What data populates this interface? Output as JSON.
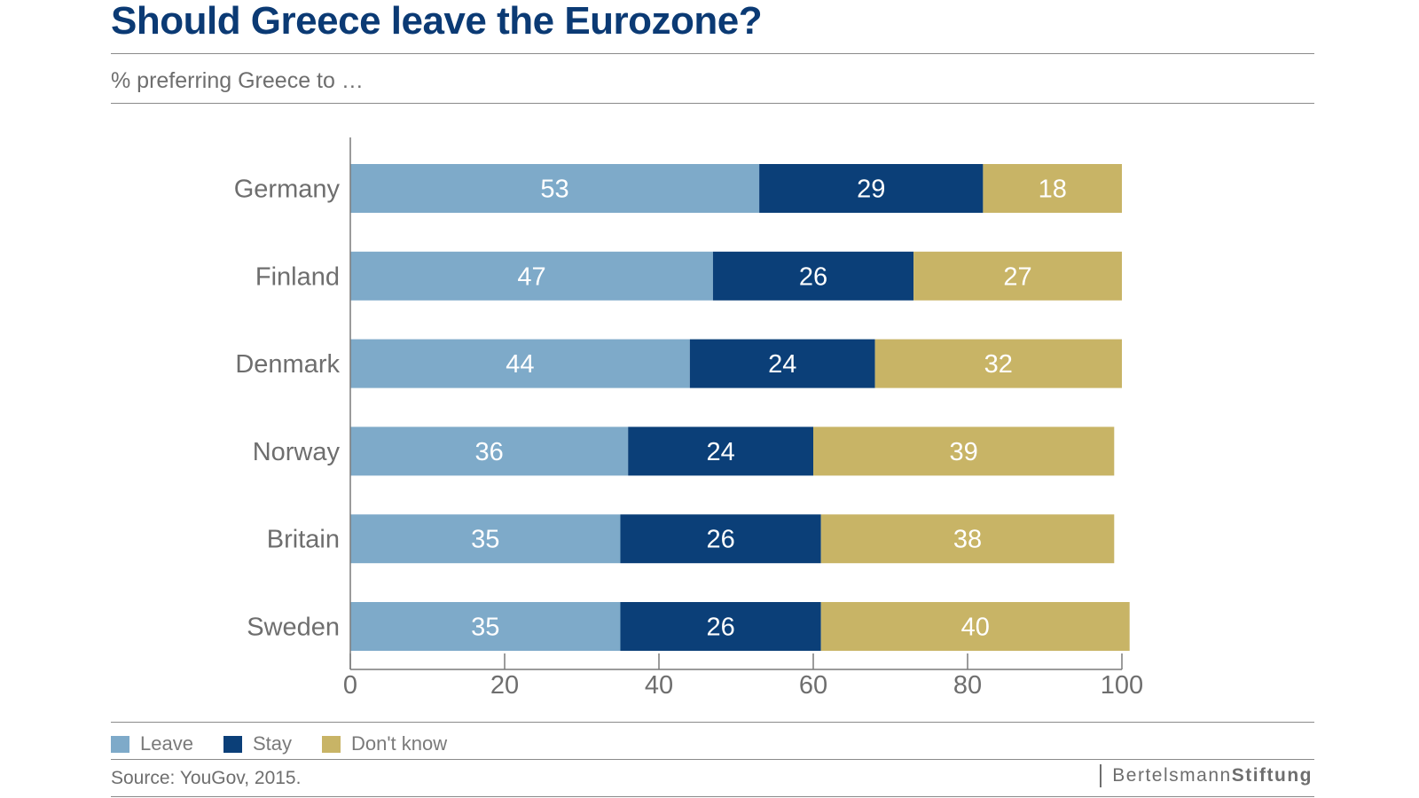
{
  "header": {
    "title": "Should Greece leave the Eurozone?",
    "subtitle": "% preferring Greece to …"
  },
  "legend": [
    {
      "label": "Leave",
      "color": "#7eaac9"
    },
    {
      "label": "Stay",
      "color": "#0b3f78"
    },
    {
      "label": "Don't know",
      "color": "#c8b466"
    }
  ],
  "footer": {
    "source": "Source: YouGov, 2015.",
    "brand_regular": "Bertelsmann",
    "brand_bold": "Stiftung"
  },
  "chart_data": {
    "type": "bar",
    "orientation": "horizontal",
    "stacked": true,
    "categories": [
      "Germany",
      "Finland",
      "Denmark",
      "Norway",
      "Britain",
      "Sweden"
    ],
    "series": [
      {
        "name": "Leave",
        "color": "#7eaac9",
        "values": [
          53,
          47,
          44,
          36,
          35,
          35
        ]
      },
      {
        "name": "Stay",
        "color": "#0b3f78",
        "values": [
          29,
          26,
          24,
          24,
          26,
          26
        ]
      },
      {
        "name": "Don't know",
        "color": "#c8b466",
        "values": [
          18,
          27,
          32,
          39,
          38,
          40
        ]
      }
    ],
    "xlim": [
      0,
      100
    ],
    "xticks": [
      0,
      20,
      40,
      60,
      80,
      100
    ],
    "grid": false,
    "legend_position": "bottom-left",
    "data_labels": true
  }
}
